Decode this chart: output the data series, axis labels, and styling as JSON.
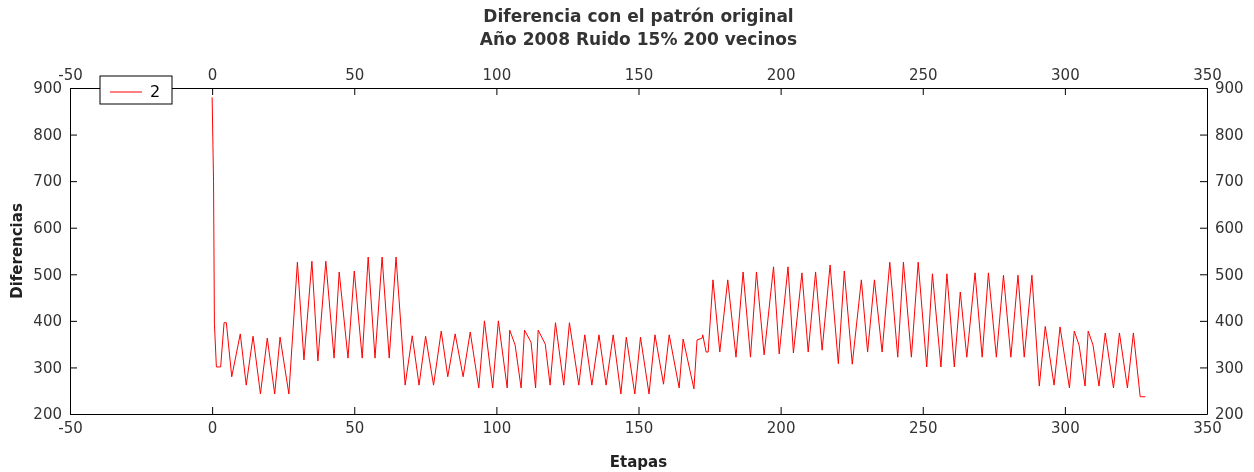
{
  "chart_data": {
    "type": "line",
    "title": "Diferencia con el patrón original",
    "subtitle": "Año 2008 Ruido 15% 200 vecinos",
    "xlabel": "Etapas",
    "ylabel": "Diferencias",
    "x": [
      0,
      0.5,
      0.8,
      1.5,
      3,
      4.2,
      5,
      6.9,
      9.9,
      12,
      14.4,
      17,
      19.4,
      22,
      23.9,
      27,
      30,
      32.3,
      35.1,
      37.2,
      40,
      42.9,
      44.7,
      47.8,
      50,
      52.8,
      54.9,
      57.3,
      59.8,
      62.3,
      64.7,
      67.9,
      70.4,
      72.8,
      75.1,
      77.9,
      80.6,
      82.9,
      85.5,
      88.3,
      90.8,
      93.8,
      95.8,
      98.7,
      100.7,
      103.8,
      104.7,
      106.6,
      108.7,
      109.9,
      112.2,
      113.8,
      114.7,
      117.2,
      118.9,
      120.8,
      123.7,
      125.7,
      129,
      131.1,
      133.6,
      136.1,
      138.6,
      141.1,
      143.8,
      145.7,
      148.7,
      150.7,
      153.7,
      155.8,
      158.8,
      160.8,
      164.3,
      165.7,
      169.5,
      170.6,
      172.4,
      172.6,
      173.8,
      174.5,
      176.2,
      178.6,
      181.4,
      184.3,
      186.8,
      189.4,
      191.5,
      194.2,
      197.5,
      199.5,
      202.6,
      204.5,
      207.5,
      209.7,
      212.3,
      214.6,
      217.4,
      220.3,
      222.4,
      225.2,
      228.4,
      230.6,
      233,
      235.7,
      238.4,
      241.2,
      243.2,
      246,
      248.4,
      251.4,
      253.4,
      256.4,
      258.5,
      261.1,
      263.2,
      265.5,
      268.4,
      270.9,
      273.1,
      275.9,
      278.4,
      281,
      283.5,
      285.7,
      288.4,
      291,
      293.1,
      296.2,
      298.3,
      301.6,
      303.3,
      305,
      307.1,
      308.2,
      309.9,
      312,
      314.2,
      317.1,
      319.2,
      322,
      324.1,
      326.5,
      328.3
    ],
    "series": [
      {
        "name": "2",
        "color": "#ff0000",
        "values": [
          880,
          700,
          395,
          301,
          301,
          396,
          396,
          280,
          372,
          262,
          367,
          243,
          363,
          243,
          365,
          243,
          526,
          316,
          528,
          314,
          528,
          320,
          505,
          320,
          507,
          320,
          537,
          320,
          537,
          320,
          537,
          262,
          368,
          262,
          367,
          262,
          378,
          280,
          372,
          280,
          376,
          256,
          400,
          256,
          400,
          256,
          380,
          348,
          256,
          380,
          354,
          256,
          380,
          350,
          262,
          396,
          262,
          396,
          262,
          370,
          262,
          370,
          262,
          370,
          243,
          365,
          243,
          365,
          243,
          370,
          264,
          370,
          256,
          361,
          254,
          359,
          363,
          370,
          333,
          333,
          488,
          333,
          488,
          322,
          505,
          322,
          505,
          327,
          516,
          329,
          516,
          331,
          503,
          333,
          505,
          337,
          520,
          308,
          507,
          307,
          488,
          333,
          488,
          333,
          526,
          322,
          526,
          322,
          526,
          301,
          501,
          301,
          501,
          301,
          462,
          322,
          503,
          322,
          503,
          322,
          498,
          322,
          498,
          322,
          498,
          260,
          388,
          262,
          387,
          256,
          378,
          348,
          260,
          378,
          348,
          260,
          374,
          256,
          374,
          256,
          374,
          237,
          237
        ]
      }
    ],
    "xlim": [
      -50,
      350
    ],
    "xticks": [
      -50,
      0,
      50,
      100,
      150,
      200,
      250,
      300,
      350
    ],
    "x2lim": [
      -50,
      350
    ],
    "x2ticks": [
      -50,
      0,
      50,
      100,
      150,
      200,
      250,
      300,
      350
    ],
    "ylim": [
      200,
      900
    ],
    "yticks": [
      200,
      300,
      400,
      500,
      600,
      700,
      800,
      900
    ],
    "y2lim": [
      200,
      900
    ],
    "y2ticks": [
      200,
      300,
      400,
      500,
      600,
      700,
      800,
      900
    ],
    "legend": "top left"
  }
}
